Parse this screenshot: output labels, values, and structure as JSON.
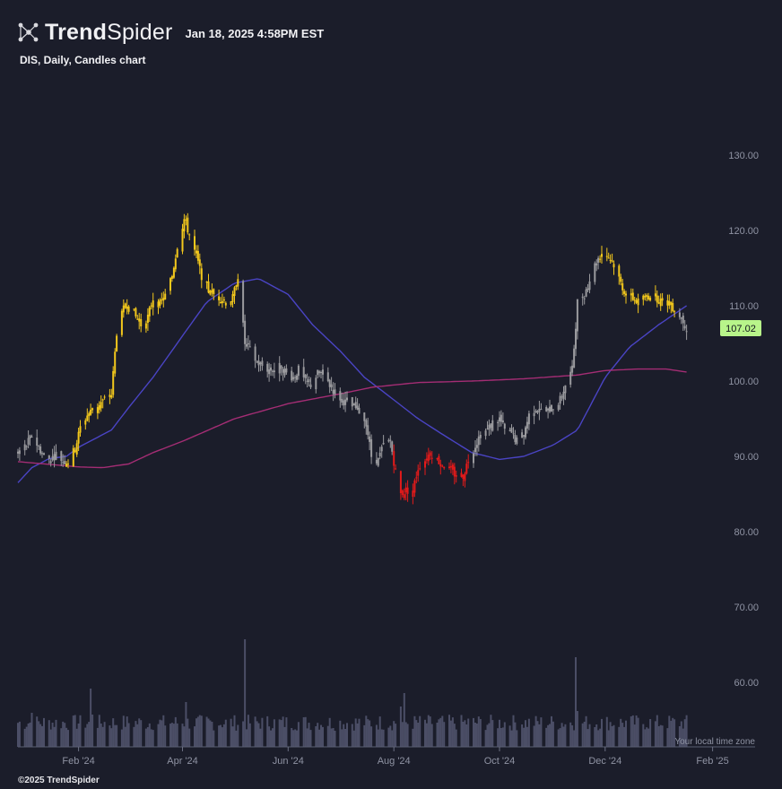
{
  "header": {
    "brand_bold": "Trend",
    "brand_regular": "Spider",
    "timestamp": "Jan 18, 2025 4:58PM EST",
    "logo_icon": "network-nodes-icon"
  },
  "chart_title": "DIS, Daily, Candles chart",
  "footer": {
    "copyright": "©2025 TrendSpider"
  },
  "timezone_note": "Your local time zone",
  "last_price_label": "107.02",
  "colors": {
    "background": "#1b1d2a",
    "candle_yellow": "#f3c81c",
    "candle_gray": "#9a9a9e",
    "candle_red": "#e41a1a",
    "ma_fast": "#4a44c4",
    "ma_slow": "#a42d74",
    "volume": "#4b4e66",
    "price_label_bg": "#b8f48a"
  },
  "chart_data": {
    "type": "candlestick",
    "symbol": "DIS",
    "interval": "Daily",
    "ylim": [
      60,
      134
    ],
    "y_ticks": [
      "130.00",
      "120.00",
      "110.00",
      "100.00",
      "90.00",
      "80.00",
      "70.00",
      "60.00"
    ],
    "y_tick_values": [
      130,
      120,
      110,
      100,
      90,
      80,
      70,
      60
    ],
    "x_tick_labels": [
      "Feb '24",
      "Apr '24",
      "Jun '24",
      "Aug '24",
      "Oct '24",
      "Dec '24",
      "Feb '25"
    ],
    "x_tick_dates": [
      "2024-02-01",
      "2024-04-01",
      "2024-06-01",
      "2024-08-01",
      "2024-10-01",
      "2024-12-01",
      "2025-02-01"
    ],
    "x_range": [
      "2023-12-28",
      "2025-02-10"
    ],
    "last_price": 107.02,
    "closes": [
      {
        "d": "2023-12-28",
        "v": 90.5
      },
      {
        "d": "2024-01-02",
        "v": 91.5
      },
      {
        "d": "2024-01-05",
        "v": 92.8
      },
      {
        "d": "2024-01-09",
        "v": 91.2
      },
      {
        "d": "2024-01-12",
        "v": 90.0
      },
      {
        "d": "2024-01-16",
        "v": 89.6
      },
      {
        "d": "2024-01-19",
        "v": 90.3
      },
      {
        "d": "2024-01-23",
        "v": 89.4
      },
      {
        "d": "2024-01-26",
        "v": 89.3
      },
      {
        "d": "2024-01-30",
        "v": 91.0
      },
      {
        "d": "2024-02-02",
        "v": 93.8
      },
      {
        "d": "2024-02-06",
        "v": 95.5
      },
      {
        "d": "2024-02-09",
        "v": 96.2
      },
      {
        "d": "2024-02-13",
        "v": 97.0
      },
      {
        "d": "2024-02-16",
        "v": 97.5
      },
      {
        "d": "2024-02-20",
        "v": 98.2
      },
      {
        "d": "2024-02-23",
        "v": 106.5
      },
      {
        "d": "2024-02-27",
        "v": 109.5
      },
      {
        "d": "2024-03-01",
        "v": 110.5
      },
      {
        "d": "2024-03-05",
        "v": 108.5
      },
      {
        "d": "2024-03-08",
        "v": 107.5
      },
      {
        "d": "2024-03-12",
        "v": 108.5
      },
      {
        "d": "2024-03-15",
        "v": 111.0
      },
      {
        "d": "2024-03-19",
        "v": 110.2
      },
      {
        "d": "2024-03-22",
        "v": 111.3
      },
      {
        "d": "2024-03-26",
        "v": 114.0
      },
      {
        "d": "2024-03-29",
        "v": 118.0
      },
      {
        "d": "2024-04-02",
        "v": 121.5
      },
      {
        "d": "2024-04-05",
        "v": 119.5
      },
      {
        "d": "2024-04-09",
        "v": 116.5
      },
      {
        "d": "2024-04-12",
        "v": 114.0
      },
      {
        "d": "2024-04-16",
        "v": 112.0
      },
      {
        "d": "2024-04-19",
        "v": 111.5
      },
      {
        "d": "2024-04-23",
        "v": 111.0
      },
      {
        "d": "2024-04-26",
        "v": 110.5
      },
      {
        "d": "2024-04-30",
        "v": 111.0
      },
      {
        "d": "2024-05-03",
        "v": 114.0
      },
      {
        "d": "2024-05-07",
        "v": 105.0
      },
      {
        "d": "2024-05-10",
        "v": 104.0
      },
      {
        "d": "2024-05-14",
        "v": 102.5
      },
      {
        "d": "2024-05-17",
        "v": 102.0
      },
      {
        "d": "2024-05-21",
        "v": 101.5
      },
      {
        "d": "2024-05-24",
        "v": 101.5
      },
      {
        "d": "2024-05-28",
        "v": 102.0
      },
      {
        "d": "2024-05-31",
        "v": 101.0
      },
      {
        "d": "2024-06-04",
        "v": 100.5
      },
      {
        "d": "2024-06-07",
        "v": 101.5
      },
      {
        "d": "2024-06-11",
        "v": 99.8
      },
      {
        "d": "2024-06-14",
        "v": 99.5
      },
      {
        "d": "2024-06-18",
        "v": 101.0
      },
      {
        "d": "2024-06-21",
        "v": 101.0
      },
      {
        "d": "2024-06-25",
        "v": 99.5
      },
      {
        "d": "2024-06-28",
        "v": 98.5
      },
      {
        "d": "2024-07-02",
        "v": 97.5
      },
      {
        "d": "2024-07-05",
        "v": 97.0
      },
      {
        "d": "2024-07-09",
        "v": 96.5
      },
      {
        "d": "2024-07-12",
        "v": 96.0
      },
      {
        "d": "2024-07-16",
        "v": 94.5
      },
      {
        "d": "2024-07-19",
        "v": 90.0
      },
      {
        "d": "2024-07-23",
        "v": 89.5
      },
      {
        "d": "2024-07-26",
        "v": 91.5
      },
      {
        "d": "2024-07-30",
        "v": 92.0
      },
      {
        "d": "2024-08-02",
        "v": 88.0
      },
      {
        "d": "2024-08-05",
        "v": 85.0
      },
      {
        "d": "2024-08-08",
        "v": 85.5
      },
      {
        "d": "2024-08-12",
        "v": 85.5
      },
      {
        "d": "2024-08-15",
        "v": 88.5
      },
      {
        "d": "2024-08-19",
        "v": 89.5
      },
      {
        "d": "2024-08-22",
        "v": 90.5
      },
      {
        "d": "2024-08-26",
        "v": 89.5
      },
      {
        "d": "2024-08-29",
        "v": 89.0
      },
      {
        "d": "2024-09-03",
        "v": 88.0
      },
      {
        "d": "2024-09-06",
        "v": 87.5
      },
      {
        "d": "2024-09-10",
        "v": 87.5
      },
      {
        "d": "2024-09-13",
        "v": 89.5
      },
      {
        "d": "2024-09-17",
        "v": 91.5
      },
      {
        "d": "2024-09-20",
        "v": 93.0
      },
      {
        "d": "2024-09-24",
        "v": 93.5
      },
      {
        "d": "2024-09-27",
        "v": 94.5
      },
      {
        "d": "2024-10-01",
        "v": 95.0
      },
      {
        "d": "2024-10-04",
        "v": 93.5
      },
      {
        "d": "2024-10-08",
        "v": 93.0
      },
      {
        "d": "2024-10-11",
        "v": 92.0
      },
      {
        "d": "2024-10-15",
        "v": 93.0
      },
      {
        "d": "2024-10-18",
        "v": 95.5
      },
      {
        "d": "2024-10-22",
        "v": 96.5
      },
      {
        "d": "2024-10-25",
        "v": 96.0
      },
      {
        "d": "2024-10-29",
        "v": 96.0
      },
      {
        "d": "2024-11-01",
        "v": 96.5
      },
      {
        "d": "2024-11-05",
        "v": 97.5
      },
      {
        "d": "2024-11-08",
        "v": 99.5
      },
      {
        "d": "2024-11-12",
        "v": 101.5
      },
      {
        "d": "2024-11-15",
        "v": 110.5
      },
      {
        "d": "2024-11-19",
        "v": 111.5
      },
      {
        "d": "2024-11-22",
        "v": 113.5
      },
      {
        "d": "2024-11-26",
        "v": 116.0
      },
      {
        "d": "2024-11-29",
        "v": 117.0
      },
      {
        "d": "2024-12-03",
        "v": 116.5
      },
      {
        "d": "2024-12-06",
        "v": 115.5
      },
      {
        "d": "2024-12-10",
        "v": 113.0
      },
      {
        "d": "2024-12-13",
        "v": 111.5
      },
      {
        "d": "2024-12-17",
        "v": 111.0
      },
      {
        "d": "2024-12-20",
        "v": 110.5
      },
      {
        "d": "2024-12-24",
        "v": 111.0
      },
      {
        "d": "2024-12-27",
        "v": 111.5
      },
      {
        "d": "2024-12-31",
        "v": 111.0
      },
      {
        "d": "2025-01-03",
        "v": 110.5
      },
      {
        "d": "2025-01-07",
        "v": 110.5
      },
      {
        "d": "2025-01-10",
        "v": 109.5
      },
      {
        "d": "2025-01-14",
        "v": 108.5
      },
      {
        "d": "2025-01-17",
        "v": 107.02
      }
    ],
    "colored_regimes": [
      {
        "from": "2023-12-28",
        "to": "2024-01-23",
        "color": "gray"
      },
      {
        "from": "2024-01-26",
        "to": "2024-05-03",
        "color": "yellow"
      },
      {
        "from": "2024-05-07",
        "to": "2024-07-30",
        "color": "gray"
      },
      {
        "from": "2024-08-02",
        "to": "2024-09-13",
        "color": "red"
      },
      {
        "from": "2024-09-17",
        "to": "2024-11-26",
        "color": "gray"
      },
      {
        "from": "2024-11-29",
        "to": "2025-01-10",
        "color": "yellow"
      },
      {
        "from": "2025-01-14",
        "to": "2025-01-17",
        "color": "gray"
      }
    ],
    "series": [
      {
        "values": [
          {
            "d": "2023-12-28",
            "v": 86.5
          },
          {
            "d": "2024-01-05",
            "v": 88.5
          },
          {
            "d": "2024-01-15",
            "v": 89.7
          },
          {
            "d": "2024-01-25",
            "v": 90.0
          },
          {
            "d": "2024-02-01",
            "v": 91.2
          },
          {
            "d": "2024-02-10",
            "v": 92.3
          },
          {
            "d": "2024-02-20",
            "v": 93.5
          },
          {
            "d": "2024-03-01",
            "v": 96.5
          },
          {
            "d": "2024-03-15",
            "v": 100.5
          },
          {
            "d": "2024-04-01",
            "v": 106.0
          },
          {
            "d": "2024-04-15",
            "v": 110.5
          },
          {
            "d": "2024-05-01",
            "v": 113.0
          },
          {
            "d": "2024-05-15",
            "v": 113.6
          },
          {
            "d": "2024-06-01",
            "v": 111.5
          },
          {
            "d": "2024-06-15",
            "v": 107.5
          },
          {
            "d": "2024-07-01",
            "v": 104.0
          },
          {
            "d": "2024-07-15",
            "v": 100.5
          },
          {
            "d": "2024-08-01",
            "v": 97.5
          },
          {
            "d": "2024-08-15",
            "v": 95.0
          },
          {
            "d": "2024-09-01",
            "v": 92.5
          },
          {
            "d": "2024-09-15",
            "v": 90.5
          },
          {
            "d": "2024-10-01",
            "v": 89.6
          },
          {
            "d": "2024-10-15",
            "v": 90.0
          },
          {
            "d": "2024-11-01",
            "v": 91.5
          },
          {
            "d": "2024-11-15",
            "v": 93.5
          },
          {
            "d": "2024-12-01",
            "v": 100.5
          },
          {
            "d": "2024-12-15",
            "v": 104.5
          },
          {
            "d": "2025-01-01",
            "v": 107.5
          },
          {
            "d": "2025-01-17",
            "v": 110.0
          }
        ]
      },
      {
        "values": [
          {
            "d": "2023-12-28",
            "v": 89.3
          },
          {
            "d": "2024-02-01",
            "v": 88.6
          },
          {
            "d": "2024-02-15",
            "v": 88.5
          },
          {
            "d": "2024-03-01",
            "v": 89.0
          },
          {
            "d": "2024-03-15",
            "v": 90.5
          },
          {
            "d": "2024-04-01",
            "v": 92.0
          },
          {
            "d": "2024-05-01",
            "v": 95.0
          },
          {
            "d": "2024-06-01",
            "v": 97.0
          },
          {
            "d": "2024-07-01",
            "v": 98.3
          },
          {
            "d": "2024-07-20",
            "v": 99.2
          },
          {
            "d": "2024-08-15",
            "v": 99.8
          },
          {
            "d": "2024-09-15",
            "v": 100.0
          },
          {
            "d": "2024-10-15",
            "v": 100.3
          },
          {
            "d": "2024-11-15",
            "v": 100.8
          },
          {
            "d": "2024-12-01",
            "v": 101.4
          },
          {
            "d": "2024-12-20",
            "v": 101.6
          },
          {
            "d": "2025-01-05",
            "v": 101.6
          },
          {
            "d": "2025-01-17",
            "v": 101.2
          }
        ]
      }
    ]
  }
}
